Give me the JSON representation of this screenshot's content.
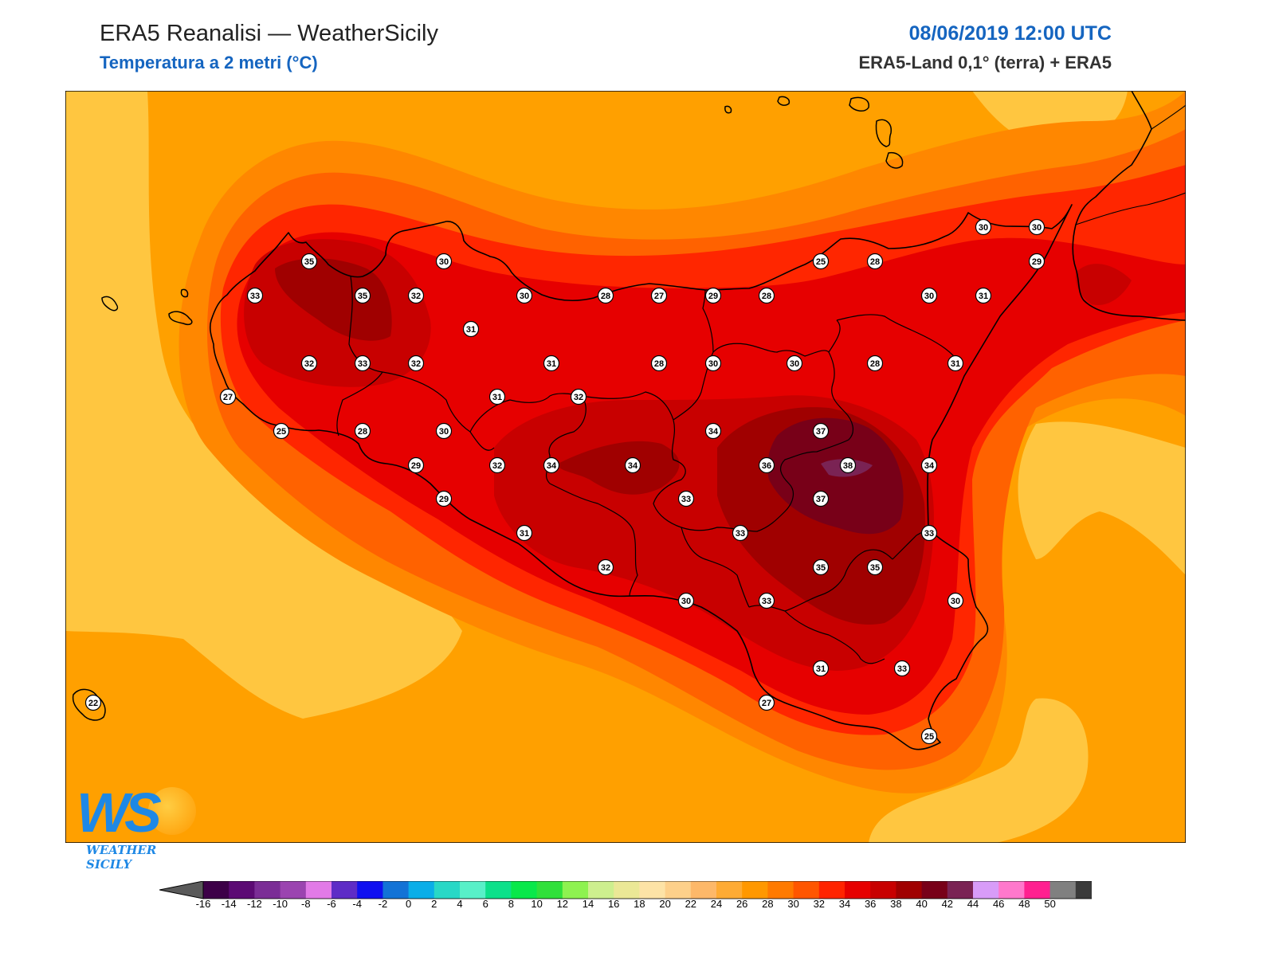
{
  "header": {
    "title": "ERA5 Reanalisi — WeatherSicily",
    "subtitle": "Temperatura a 2 metri (°C)",
    "datetime": "08/06/2019 12:00 UTC",
    "model": "ERA5-Land 0,1° (terra) + ERA5"
  },
  "logo": {
    "mark": "WS",
    "text": "WEATHER SICILY"
  },
  "colorbar": {
    "ticks": [
      -16,
      -14,
      -12,
      -10,
      -8,
      -6,
      -4,
      -2,
      0,
      2,
      4,
      6,
      8,
      10,
      12,
      14,
      16,
      18,
      20,
      22,
      24,
      26,
      28,
      30,
      32,
      34,
      36,
      38,
      40,
      42,
      44,
      46,
      48,
      50
    ],
    "colors": [
      "#3d0048",
      "#5c0a74",
      "#7b2d96",
      "#9b44b0",
      "#e27ae7",
      "#5e2cc6",
      "#1010f0",
      "#1373d6",
      "#0aaee8",
      "#28d8c6",
      "#58f0c8",
      "#0ce08a",
      "#09e84a",
      "#30e03a",
      "#8ef250",
      "#cdef8e",
      "#ebe896",
      "#fde3a6",
      "#fdd08a",
      "#fdb869",
      "#feab34",
      "#ff9800",
      "#ff7a00",
      "#ff5600",
      "#ff2400",
      "#e60000",
      "#c80000",
      "#a00000",
      "#780018",
      "#7a2354",
      "#d89cf8",
      "#ff78cc",
      "#ff2090",
      "#808080",
      "#3a3a3a"
    ],
    "under_color": "#5a5a5a",
    "over_color": "#000000"
  },
  "chart_data": {
    "type": "contour-map",
    "variable": "Temperatura a 2 metri (°C)",
    "levels": [
      -16,
      -14,
      -12,
      -10,
      -8,
      -6,
      -4,
      -2,
      0,
      2,
      4,
      6,
      8,
      10,
      12,
      14,
      16,
      18,
      20,
      22,
      24,
      26,
      28,
      30,
      32,
      34,
      36,
      38,
      40,
      42,
      44,
      46,
      48,
      50
    ],
    "station_values": [
      {
        "name": "v1",
        "value": 35,
        "ix": 388,
        "iy": 326
      },
      {
        "name": "v2",
        "value": 30,
        "ix": 557,
        "iy": 326
      },
      {
        "name": "v3",
        "value": 33,
        "ix": 320,
        "iy": 369
      },
      {
        "name": "v4",
        "value": 35,
        "ix": 455,
        "iy": 369
      },
      {
        "name": "v5",
        "value": 32,
        "ix": 522,
        "iy": 369
      },
      {
        "name": "v6",
        "value": 30,
        "ix": 658,
        "iy": 369
      },
      {
        "name": "v7",
        "value": 28,
        "ix": 760,
        "iy": 369
      },
      {
        "name": "v8",
        "value": 27,
        "ix": 827,
        "iy": 369
      },
      {
        "name": "v9",
        "value": 29,
        "ix": 895,
        "iy": 369
      },
      {
        "name": "v10",
        "value": 28,
        "ix": 962,
        "iy": 369
      },
      {
        "name": "v11",
        "value": 25,
        "ix": 1030,
        "iy": 326
      },
      {
        "name": "v12",
        "value": 28,
        "ix": 1098,
        "iy": 326
      },
      {
        "name": "v13",
        "value": 30,
        "ix": 1234,
        "iy": 283
      },
      {
        "name": "v14",
        "value": 30,
        "ix": 1301,
        "iy": 283
      },
      {
        "name": "v15",
        "value": 29,
        "ix": 1301,
        "iy": 326
      },
      {
        "name": "v16",
        "value": 30,
        "ix": 1166,
        "iy": 369
      },
      {
        "name": "v17",
        "value": 31,
        "ix": 1234,
        "iy": 369
      },
      {
        "name": "v18",
        "value": 31,
        "ix": 591,
        "iy": 411
      },
      {
        "name": "v19",
        "value": 32,
        "ix": 388,
        "iy": 454
      },
      {
        "name": "v20",
        "value": 33,
        "ix": 455,
        "iy": 454
      },
      {
        "name": "v21",
        "value": 32,
        "ix": 522,
        "iy": 454
      },
      {
        "name": "v22",
        "value": 31,
        "ix": 692,
        "iy": 454
      },
      {
        "name": "v23",
        "value": 28,
        "ix": 827,
        "iy": 454
      },
      {
        "name": "v24",
        "value": 30,
        "ix": 895,
        "iy": 454
      },
      {
        "name": "v25",
        "value": 30,
        "ix": 997,
        "iy": 454
      },
      {
        "name": "v26",
        "value": 28,
        "ix": 1098,
        "iy": 454
      },
      {
        "name": "v27",
        "value": 31,
        "ix": 1199,
        "iy": 454
      },
      {
        "name": "v28",
        "value": 27,
        "ix": 286,
        "iy": 496
      },
      {
        "name": "v29",
        "value": 31,
        "ix": 624,
        "iy": 496
      },
      {
        "name": "v30",
        "value": 32,
        "ix": 726,
        "iy": 496
      },
      {
        "name": "v31",
        "value": 25,
        "ix": 353,
        "iy": 539
      },
      {
        "name": "v32",
        "value": 28,
        "ix": 455,
        "iy": 539
      },
      {
        "name": "v33",
        "value": 30,
        "ix": 557,
        "iy": 539
      },
      {
        "name": "v34",
        "value": 34,
        "ix": 895,
        "iy": 539
      },
      {
        "name": "v35",
        "value": 37,
        "ix": 1030,
        "iy": 539
      },
      {
        "name": "v36",
        "value": 29,
        "ix": 522,
        "iy": 582
      },
      {
        "name": "v37",
        "value": 32,
        "ix": 624,
        "iy": 582
      },
      {
        "name": "v38",
        "value": 34,
        "ix": 692,
        "iy": 582
      },
      {
        "name": "v39",
        "value": 34,
        "ix": 794,
        "iy": 582
      },
      {
        "name": "v40",
        "value": 36,
        "ix": 962,
        "iy": 582
      },
      {
        "name": "v41",
        "value": 38,
        "ix": 1064,
        "iy": 582
      },
      {
        "name": "v42",
        "value": 34,
        "ix": 1166,
        "iy": 582
      },
      {
        "name": "v43",
        "value": 29,
        "ix": 557,
        "iy": 624
      },
      {
        "name": "v44",
        "value": 33,
        "ix": 861,
        "iy": 624
      },
      {
        "name": "v45",
        "value": 37,
        "ix": 1030,
        "iy": 624
      },
      {
        "name": "v46",
        "value": 31,
        "ix": 658,
        "iy": 667
      },
      {
        "name": "v47",
        "value": 33,
        "ix": 929,
        "iy": 667
      },
      {
        "name": "v48",
        "value": 33,
        "ix": 1166,
        "iy": 667
      },
      {
        "name": "v49",
        "value": 32,
        "ix": 760,
        "iy": 710
      },
      {
        "name": "v50",
        "value": 35,
        "ix": 1030,
        "iy": 710
      },
      {
        "name": "v51",
        "value": 35,
        "ix": 1098,
        "iy": 710
      },
      {
        "name": "v52",
        "value": 30,
        "ix": 861,
        "iy": 752
      },
      {
        "name": "v53",
        "value": 33,
        "ix": 962,
        "iy": 752
      },
      {
        "name": "v54",
        "value": 30,
        "ix": 1199,
        "iy": 752
      },
      {
        "name": "v55",
        "value": 31,
        "ix": 1030,
        "iy": 837
      },
      {
        "name": "v56",
        "value": 33,
        "ix": 1132,
        "iy": 837
      },
      {
        "name": "v57",
        "value": 27,
        "ix": 962,
        "iy": 880
      },
      {
        "name": "v58",
        "value": 22,
        "ix": 117,
        "iy": 880
      },
      {
        "name": "v59",
        "value": 25,
        "ix": 1166,
        "iy": 922
      }
    ]
  }
}
